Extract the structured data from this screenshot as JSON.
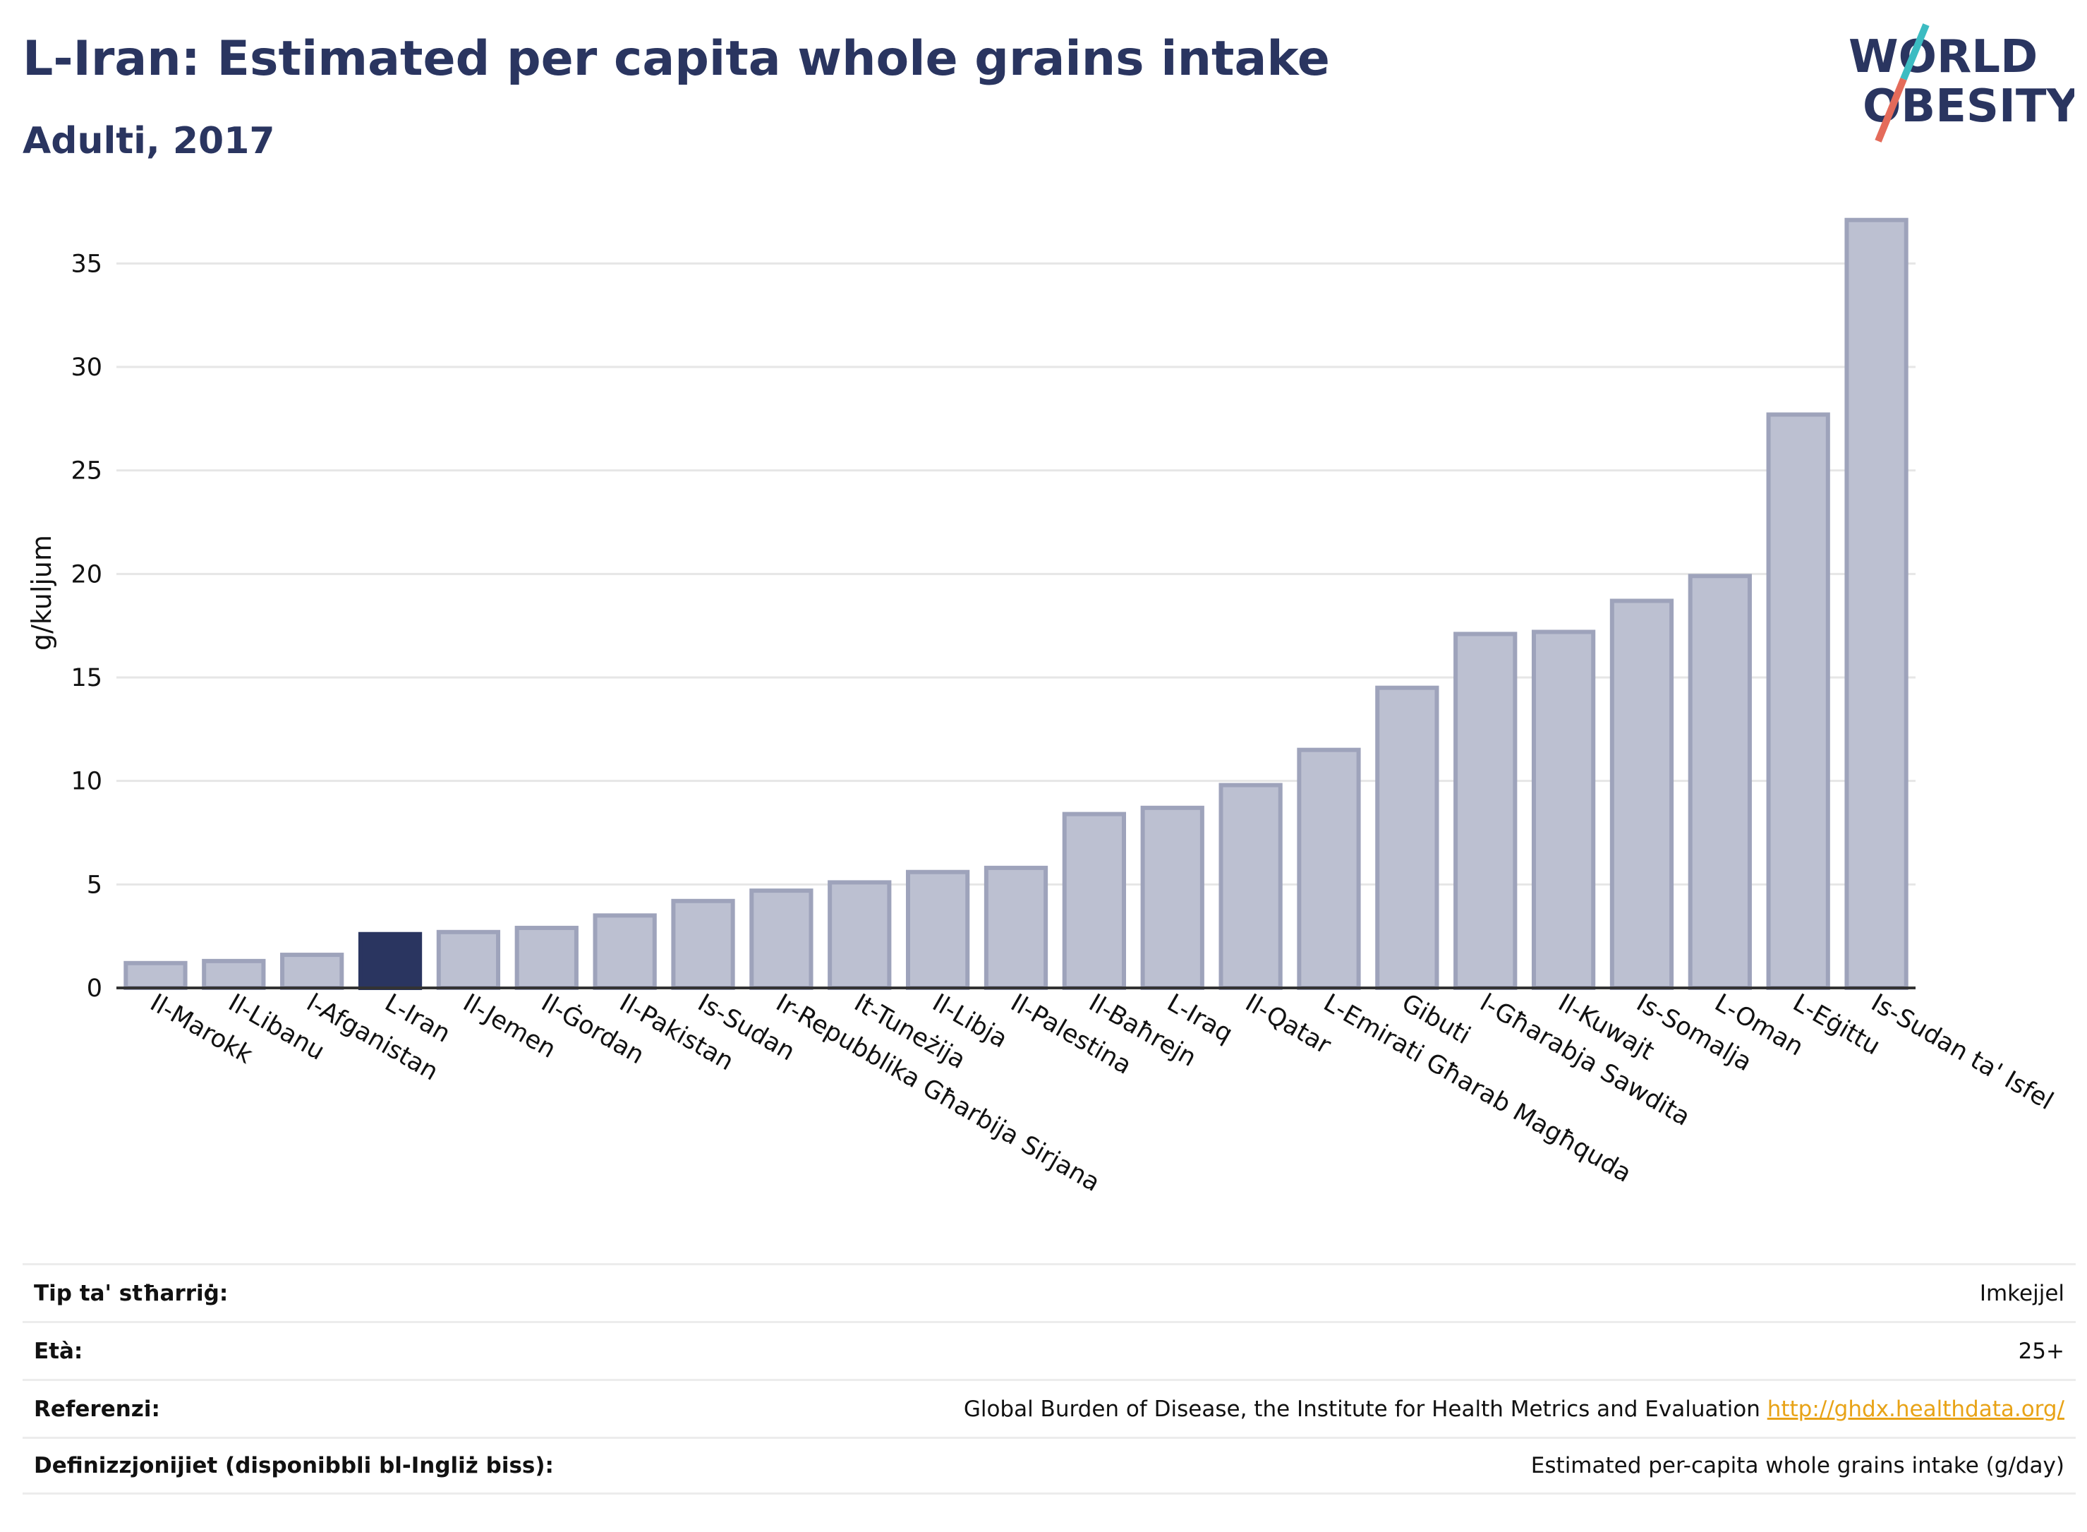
{
  "header": {
    "title": "L-Iran: Estimated per capita whole grains intake",
    "subtitle": "Adulti, 2017"
  },
  "logo": {
    "line1": "WORLD",
    "line2": "OBESITY"
  },
  "colors": {
    "highlight": "#2a3560",
    "bar_fill": "#bcc0d1",
    "bar_stroke": "#9ea3bb",
    "grid": "#e6e6e6",
    "logo_teal": "#3cbcc2",
    "logo_coral": "#e46b5a",
    "link": "#e8a317"
  },
  "chart_data": {
    "type": "bar",
    "ylabel": "g/kuljum",
    "ylim": [
      0,
      37.5
    ],
    "yticks": [
      0,
      5,
      10,
      15,
      20,
      25,
      30,
      35
    ],
    "grid": true,
    "highlight_category": "L-Iran",
    "categories": [
      "Il-Marokk",
      "Il-Libanu",
      "l-Afganistan",
      "L-Iran",
      "Il-Jemen",
      "Il-Ġordan",
      "Il-Pakistan",
      "Is-Sudan",
      "Ir-Repubblika Għarbija Sirjana",
      "It-Tuneżija",
      "Il-Libja",
      "Il-Palestina",
      "Il-Baħrejn",
      "L-Iraq",
      "Il-Qatar",
      "L-Emirati Għarab Magħquda",
      "Gibuti",
      "l-Għarabja Sawdita",
      "Il-Kuwajt",
      "Is-Somalja",
      "L-Oman",
      "L-Eġittu",
      "Is-Sudan ta' Isfel"
    ],
    "values": [
      1.2,
      1.3,
      1.6,
      2.6,
      2.7,
      2.9,
      3.5,
      4.2,
      4.7,
      5.1,
      5.6,
      5.8,
      8.4,
      8.7,
      9.8,
      11.5,
      14.5,
      17.1,
      17.2,
      18.7,
      19.9,
      27.7,
      37.1
    ]
  },
  "info": {
    "rows": [
      {
        "label": "Tip ta' stħarriġ:",
        "value": "Imkejjel"
      },
      {
        "label": "Età:",
        "value": "25+"
      },
      {
        "label": "Referenzi:",
        "value": "Global Burden of Disease, the Institute for Health Metrics and Evaluation",
        "link": "http://ghdx.healthdata.org/"
      },
      {
        "label": "Definizzjonijiet (disponibbli bl-Ingliż biss):",
        "value": "Estimated per-capita whole grains intake (g/day)"
      }
    ]
  }
}
